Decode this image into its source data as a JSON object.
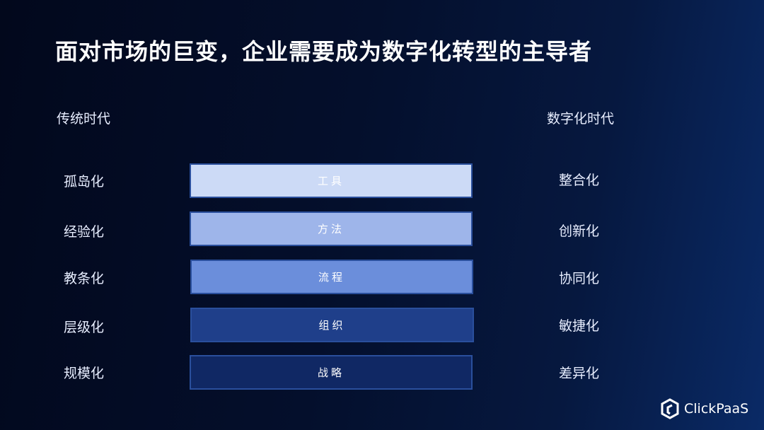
{
  "title": "面对市场的巨变，企业需要成为数字化转型的主导者",
  "left_header": "传统时代",
  "right_header": "数字化时代",
  "left_items": [
    "孤岛化",
    "经验化",
    "教条化",
    "层级化",
    "规模化"
  ],
  "right_items": [
    "整合化",
    "创新化",
    "协同化",
    "敏捷化",
    "差异化"
  ],
  "layers": [
    {
      "label": "工具",
      "color": "#ccdaf6"
    },
    {
      "label": "方法",
      "color": "#9eb5ea"
    },
    {
      "label": "流程",
      "color": "#6b8edb"
    },
    {
      "label": "组织",
      "color": "#1f3f8a"
    },
    {
      "label": "战略",
      "color": "#102864"
    }
  ],
  "logo": {
    "text": "ClickPaaS",
    "icon": "clickpaas-logo-icon"
  }
}
